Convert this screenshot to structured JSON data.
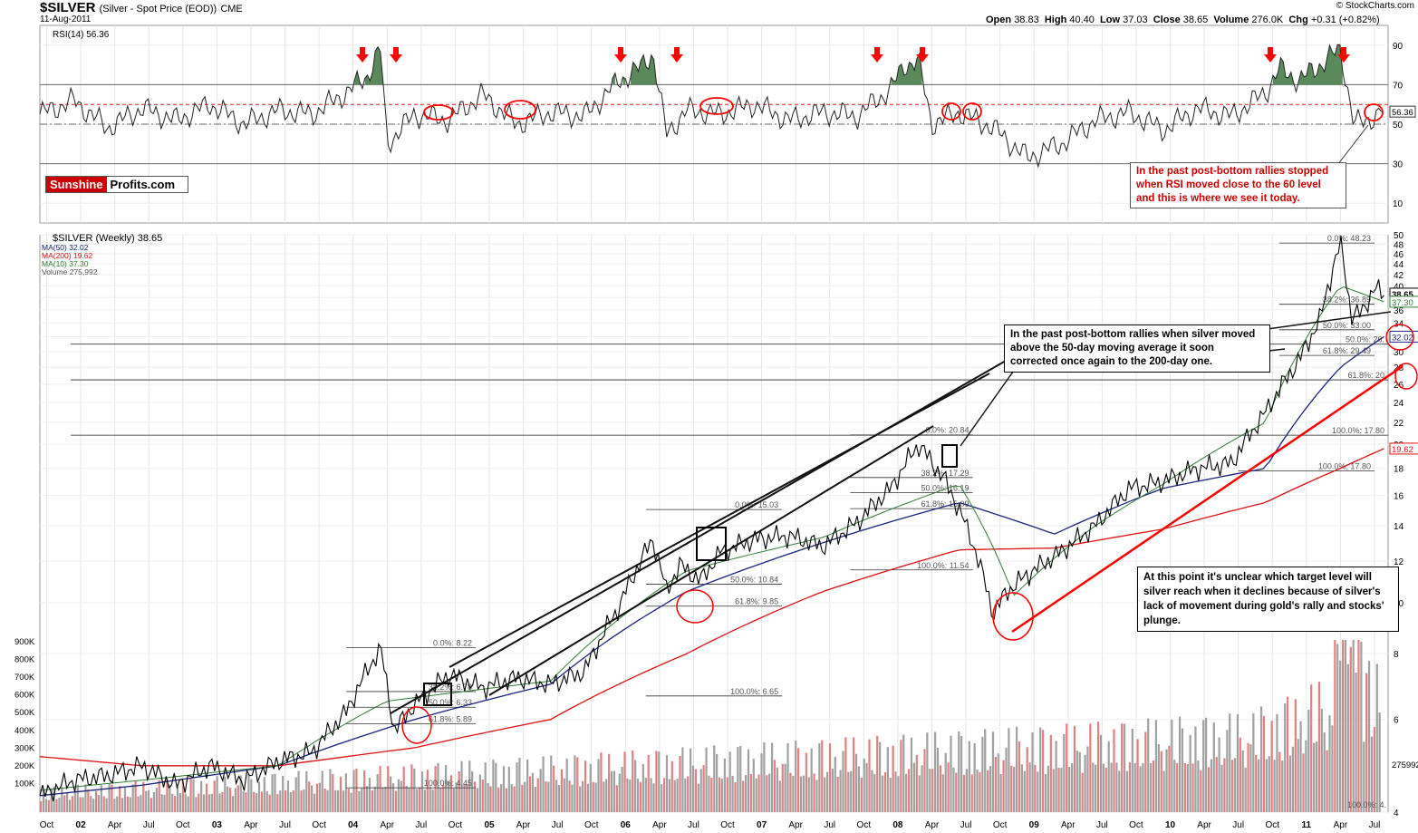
{
  "header": {
    "ticker": "$SILVER",
    "ticker_sub": "(Silver - Spot Price (EOD))",
    "exchange": "CME",
    "date": "11-Aug-2011",
    "watermark": "© StockCharts.com",
    "ohlc": {
      "open_label": "Open",
      "open": "38.83",
      "high_label": "High",
      "high": "40.40",
      "low_label": "Low",
      "low": "37.03",
      "close_label": "Close",
      "close": "38.65",
      "volume_label": "Volume",
      "volume": "276.0K",
      "chg_label": "Chg",
      "chg": "+0.31 (+0.82%)"
    }
  },
  "logo": {
    "part1": "Sunshine",
    "part2": "Profits.com"
  },
  "annotations": {
    "rsi_note": "In the past post-bottom rallies stopped when RSI moved close to the 60 level and this is where we see it today.",
    "ma_note": "In the past post-bottom rallies when silver moved above the 50-day moving average it soon corrected once again to the 200-day one.",
    "target_note": "At this point it's unclear which target level will silver reach when it declines because of silver's lack of movement during gold's rally and stocks' plunge."
  },
  "colors": {
    "price_up": "#000000",
    "price_down": "#cc0000",
    "ma50": "#1a237e",
    "ma200": "#dd1111",
    "ma10": "#2e7d32",
    "rsi_fill": "#5a8a5a",
    "volume_up": "#a0a0a0",
    "volume_down": "#e08080",
    "annotation_red": "#ff0000"
  },
  "chart_data": [
    {
      "type": "line",
      "name": "rsi-panel",
      "legend": "RSI(14) 56.36",
      "last_value": 56.36,
      "last_label": "56.36",
      "ylim": [
        0,
        100
      ],
      "yticks": [
        10,
        30,
        50,
        70,
        90
      ],
      "reference_levels": [
        30,
        50,
        60,
        70
      ],
      "x": [
        2001.75,
        2002.0,
        2002.25,
        2002.5,
        2002.75,
        2003.0,
        2003.25,
        2003.5,
        2003.75,
        2004.0,
        2004.15,
        2004.25,
        2004.3,
        2004.5,
        2004.75,
        2005.0,
        2005.25,
        2005.5,
        2005.75,
        2006.0,
        2006.15,
        2006.25,
        2006.35,
        2006.5,
        2006.75,
        2007.0,
        2007.25,
        2007.5,
        2007.75,
        2008.0,
        2008.1,
        2008.2,
        2008.3,
        2008.5,
        2008.75,
        2009.0,
        2009.25,
        2009.5,
        2009.75,
        2010.0,
        2010.25,
        2010.5,
        2010.75,
        2010.85,
        2011.0,
        2011.15,
        2011.3,
        2011.4,
        2011.5,
        2011.6
      ],
      "values": [
        55,
        62,
        48,
        58,
        52,
        60,
        50,
        57,
        55,
        66,
        74,
        88,
        40,
        55,
        52,
        65,
        50,
        56,
        54,
        72,
        78,
        86,
        45,
        57,
        55,
        60,
        52,
        56,
        54,
        68,
        80,
        82,
        50,
        56,
        48,
        33,
        40,
        52,
        56,
        47,
        58,
        54,
        66,
        78,
        72,
        80,
        88,
        50,
        52,
        56.36
      ]
    },
    {
      "type": "line",
      "name": "price-panel",
      "legend": "$SILVER (Weekly) 38.65",
      "series_legend": [
        "MA(50) 32.02",
        "MA(200) 19.62",
        "MA(10) 37.30",
        "Volume 275,992"
      ],
      "x_tick_labels": [
        "Oct",
        "02",
        "Apr",
        "Jul",
        "Oct",
        "03",
        "Apr",
        "Jul",
        "Oct",
        "04",
        "Apr",
        "Jul",
        "Oct",
        "05",
        "Apr",
        "Jul",
        "Oct",
        "06",
        "Apr",
        "Jul",
        "Oct",
        "07",
        "Apr",
        "Jul",
        "Oct",
        "08",
        "Apr",
        "Jul",
        "Oct",
        "09",
        "Apr",
        "Jul",
        "Oct",
        "10",
        "Apr",
        "Jul",
        "Oct",
        "11",
        "Apr",
        "Jul"
      ],
      "yticks": [
        4,
        6,
        8,
        10,
        12,
        14,
        16,
        18,
        20,
        22,
        24,
        26,
        28,
        30,
        32,
        34,
        36,
        38,
        40,
        42,
        44,
        46,
        48,
        50
      ],
      "ylim": [
        4,
        50
      ],
      "price_labels": {
        "close": "38.65",
        "ma10": "37.30",
        "ma50": "32.02",
        "ma200": "19.62"
      },
      "volume_ticks": [
        "100K",
        "200K",
        "300K",
        "400K",
        "500K",
        "600K",
        "700K",
        "800K",
        "900K"
      ],
      "volume_last": "275992",
      "series": [
        {
          "name": "$SILVER",
          "x": [
            2001.75,
            2002.0,
            2002.25,
            2002.5,
            2002.75,
            2003.0,
            2003.25,
            2003.5,
            2003.75,
            2004.0,
            2004.25,
            2004.35,
            2004.5,
            2004.75,
            2005.0,
            2005.25,
            2005.5,
            2005.75,
            2006.0,
            2006.25,
            2006.35,
            2006.45,
            2006.6,
            2006.75,
            2007.0,
            2007.25,
            2007.5,
            2007.75,
            2008.0,
            2008.2,
            2008.4,
            2008.6,
            2008.75,
            2008.85,
            2009.0,
            2009.25,
            2009.5,
            2009.75,
            2010.0,
            2010.25,
            2010.5,
            2010.75,
            2011.0,
            2011.15,
            2011.3,
            2011.38,
            2011.45,
            2011.55,
            2011.62
          ],
          "values": [
            4.3,
            4.6,
            4.7,
            4.9,
            4.5,
            4.9,
            4.6,
            5.0,
            5.2,
            6.2,
            8.2,
            5.7,
            6.4,
            7.3,
            6.9,
            7.2,
            7.0,
            7.4,
            9.8,
            13.2,
            10.5,
            11.8,
            11.0,
            12.5,
            13.2,
            13.4,
            12.8,
            14.2,
            16.5,
            20.0,
            17.0,
            13.0,
            9.5,
            10.5,
            11.3,
            12.5,
            14.0,
            16.5,
            17.0,
            18.0,
            18.4,
            23.0,
            29.0,
            34.5,
            48.2,
            35.0,
            35.5,
            39.5,
            38.65
          ]
        },
        {
          "name": "MA(50)",
          "x": [
            2001.75,
            2002.5,
            2003.5,
            2004.5,
            2005.5,
            2006.5,
            2007.5,
            2008.5,
            2009.2,
            2010.0,
            2010.75,
            2011.3,
            2011.62
          ],
          "values": [
            4.3,
            4.5,
            4.9,
            6.0,
            7.0,
            10.5,
            13.0,
            15.5,
            13.5,
            16.5,
            18.0,
            28.0,
            32.02
          ]
        },
        {
          "name": "MA(200)",
          "x": [
            2001.75,
            2002.5,
            2003.5,
            2004.5,
            2005.5,
            2006.5,
            2007.5,
            2008.5,
            2009.2,
            2010.0,
            2010.75,
            2011.3,
            2011.62
          ],
          "values": [
            5.1,
            4.9,
            4.9,
            5.3,
            6.0,
            8.0,
            10.5,
            12.6,
            12.7,
            13.8,
            15.5,
            18.0,
            19.62
          ]
        },
        {
          "name": "MA(10)",
          "x": [
            2001.75,
            2002.5,
            2003.5,
            2004.3,
            2005.5,
            2006.5,
            2007.5,
            2008.5,
            2008.9,
            2009.5,
            2010.0,
            2010.75,
            2011.3,
            2011.62
          ],
          "values": [
            4.4,
            4.6,
            4.9,
            6.5,
            7.1,
            11.5,
            13.3,
            16.8,
            10.3,
            14.0,
            16.8,
            22.0,
            40.0,
            37.3
          ]
        }
      ],
      "fib_levels": [
        "0.0%: 8.22",
        "38.2%: 6.78",
        "50.0%: 6.33",
        "61.8%: 5.89",
        "100.0%: 4.45",
        "100.0%: 6.65",
        "0.0%: 15.03",
        "50.0%: 10.84",
        "61.8%: 9.85",
        "0.0%: 20.84",
        "38.2%: 17.29",
        "50.0%: 16.19",
        "61.8%: 15.09",
        "100.0%: 11.54",
        "0.0%: 48.23",
        "38.2%: 36.89",
        "50.0%: 33.00",
        "61.8%: 29.49",
        "50.0%: 26.",
        "61.8%: 20",
        "100.0%: 17.80",
        "100.0%: 4."
      ]
    }
  ]
}
